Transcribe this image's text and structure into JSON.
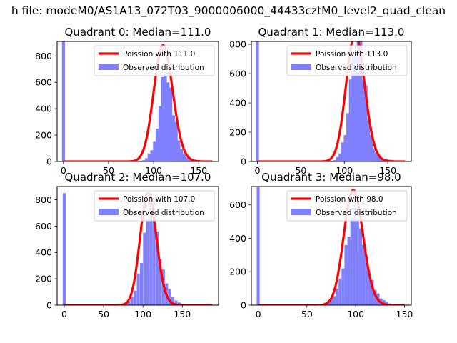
{
  "figure": {
    "suptitle": "h file: modeM0/AS1A13_072T03_9000006000_44433cztM0_level2_quad_clean"
  },
  "colors": {
    "poisson_line": "#ff0000",
    "histogram_bar": "#8080ff"
  },
  "chart_data": [
    {
      "type": "bar",
      "title": "Quadrant 0: Median=111.0",
      "xlabel": "",
      "ylabel": "",
      "xlim": [
        -7,
        172
      ],
      "ylim": [
        0,
        910
      ],
      "xticks": [
        0,
        50,
        100,
        150
      ],
      "yticks": [
        0,
        200,
        400,
        600,
        800
      ],
      "legend_position": "upper right",
      "series": [
        {
          "name": "Poission with 111.0",
          "kind": "line",
          "mean": 111.0,
          "peak": 880,
          "x_range": [
            0,
            165
          ]
        },
        {
          "name": "Observed distribution",
          "kind": "histogram",
          "bin_width": 3.3,
          "zero_bin": 910,
          "bins_x": [
            80,
            83,
            86,
            89,
            92,
            95,
            98,
            101,
            104,
            107,
            110,
            113,
            116,
            119,
            122,
            125,
            128,
            131,
            134,
            137,
            140,
            143,
            146,
            149,
            152,
            155,
            158,
            161
          ],
          "values": [
            2,
            3,
            5,
            10,
            25,
            60,
            85,
            150,
            250,
            420,
            640,
            680,
            600,
            560,
            350,
            300,
            160,
            95,
            55,
            30,
            15,
            8,
            5,
            3,
            2,
            1,
            1,
            1
          ]
        }
      ]
    },
    {
      "type": "bar",
      "title": "Quadrant 1: Median=113.0",
      "xlabel": "",
      "ylabel": "",
      "xlim": [
        -7,
        177
      ],
      "ylim": [
        0,
        820
      ],
      "xticks": [
        0,
        50,
        100,
        150
      ],
      "yticks": [
        0,
        200,
        400,
        600,
        800
      ],
      "legend_position": "upper right",
      "series": [
        {
          "name": "Poission with 113.0",
          "kind": "line",
          "mean": 113.0,
          "peak": 870,
          "x_range": [
            0,
            170
          ]
        },
        {
          "name": "Observed distribution",
          "kind": "histogram",
          "bin_width": 3.4,
          "zero_bin": 820,
          "bins_x": [
            80,
            83,
            86,
            89,
            92,
            95,
            98,
            101,
            104,
            107,
            110,
            113,
            116,
            119,
            122,
            125,
            128,
            131,
            134,
            137,
            140,
            143,
            146,
            149,
            152,
            155,
            158,
            161
          ],
          "values": [
            2,
            3,
            5,
            10,
            30,
            55,
            130,
            180,
            330,
            560,
            720,
            730,
            850,
            850,
            560,
            520,
            280,
            180,
            90,
            55,
            35,
            25,
            20,
            15,
            12,
            10,
            5,
            2
          ]
        }
      ]
    },
    {
      "type": "bar",
      "title": "Quadrant 2: Median=107.0",
      "xlabel": "",
      "ylabel": "",
      "xlim": [
        -9,
        196
      ],
      "ylim": [
        0,
        900
      ],
      "xticks": [
        0,
        50,
        100,
        150
      ],
      "yticks": [
        0,
        200,
        400,
        600,
        800
      ],
      "legend_position": "upper right",
      "series": [
        {
          "name": "Poission with 107.0",
          "kind": "line",
          "mean": 107.0,
          "peak": 850,
          "x_range": [
            0,
            188
          ]
        },
        {
          "name": "Observed distribution",
          "kind": "histogram",
          "bin_width": 3.75,
          "zero_bin": 850,
          "bins_x": [
            70,
            74,
            78,
            82,
            86,
            90,
            94,
            98,
            102,
            106,
            110,
            114,
            118,
            122,
            126,
            130,
            134,
            138,
            142,
            146,
            150,
            154,
            158,
            162
          ],
          "values": [
            3,
            8,
            15,
            30,
            60,
            110,
            240,
            320,
            550,
            650,
            850,
            700,
            560,
            350,
            270,
            165,
            120,
            60,
            35,
            20,
            10,
            5,
            3,
            2
          ]
        }
      ]
    },
    {
      "type": "bar",
      "title": "Quadrant 3: Median=98.0",
      "xlabel": "",
      "ylabel": "",
      "xlim": [
        -7,
        157
      ],
      "ylim": [
        0,
        710
      ],
      "xticks": [
        0,
        50,
        100,
        150
      ],
      "yticks": [
        0,
        200,
        400,
        600
      ],
      "legend_position": "upper right",
      "series": [
        {
          "name": "Poission with 98.0",
          "kind": "line",
          "mean": 98.0,
          "peak": 690,
          "x_range": [
            0,
            150
          ]
        },
        {
          "name": "Observed distribution",
          "kind": "histogram",
          "bin_width": 3.0,
          "zero_bin": 710,
          "bins_x": [
            60,
            63,
            66,
            69,
            72,
            75,
            78,
            81,
            84,
            87,
            90,
            93,
            96,
            99,
            102,
            105,
            108,
            111,
            114,
            117,
            120,
            123,
            126,
            129,
            132,
            135,
            138,
            141
          ],
          "values": [
            3,
            5,
            8,
            15,
            25,
            40,
            55,
            100,
            160,
            220,
            360,
            410,
            520,
            680,
            520,
            460,
            360,
            300,
            190,
            150,
            90,
            70,
            40,
            30,
            20,
            10,
            5,
            2
          ]
        }
      ]
    }
  ]
}
